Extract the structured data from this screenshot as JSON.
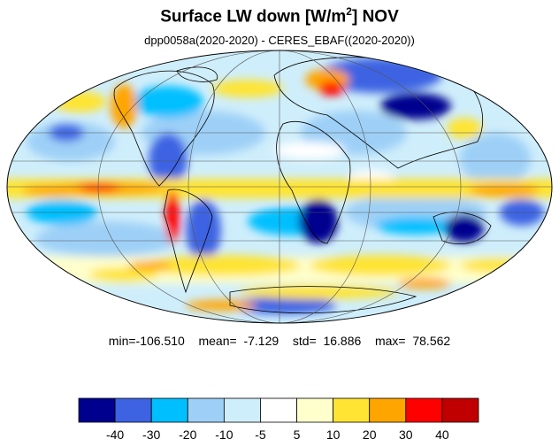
{
  "title": {
    "text_pre": "Surface LW down [W/m",
    "sup": "2",
    "text_post": "]  NOV"
  },
  "subtitle": "dpp0058a(2020-2020) - CERES_EBAF((2020-2020))",
  "stats": {
    "min": "min=-106.510",
    "mean": "mean=  -7.129",
    "std": "std=  16.886",
    "max": "max=  78.562"
  },
  "colorbar": {
    "colors": [
      "#00008f",
      "#3d63e3",
      "#00bfff",
      "#9ed0f7",
      "#cfeefb",
      "#ffffff",
      "#ffffcc",
      "#ffe433",
      "#ffa500",
      "#ff0000",
      "#c00000"
    ],
    "tick_labels": [
      "-40",
      "-30",
      "-20",
      "-10",
      "-5",
      "5",
      "10",
      "20",
      "30",
      "40"
    ]
  }
}
